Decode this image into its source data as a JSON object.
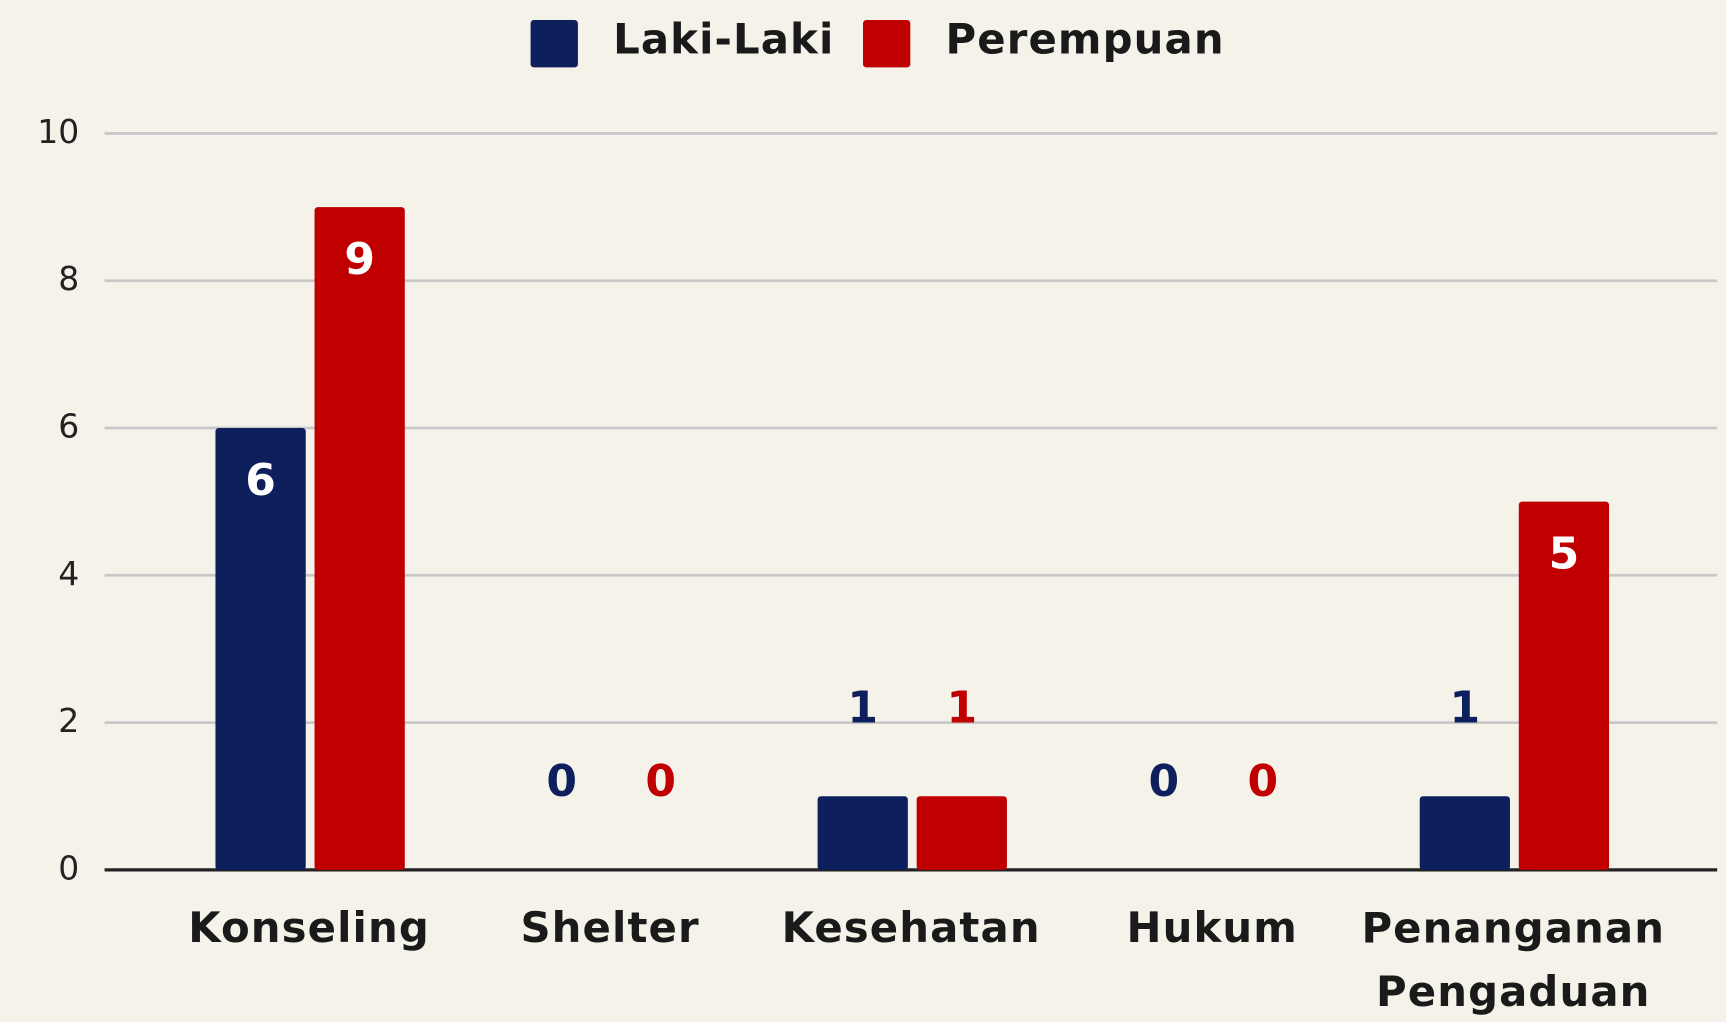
{
  "chart_data": {
    "type": "bar",
    "categories": [
      "Konseling",
      "Shelter",
      "Kesehatan",
      "Hukum",
      "Penanganan Pengaduan"
    ],
    "series": [
      {
        "name": "Laki-Laki",
        "color": "#0d1f5c",
        "values": [
          6,
          0,
          1,
          0,
          1
        ]
      },
      {
        "name": "Perempuan",
        "color": "#c00000",
        "values": [
          9,
          0,
          1,
          0,
          5
        ]
      }
    ],
    "ylim": [
      0,
      10
    ],
    "yticks": [
      0,
      2,
      4,
      6,
      8,
      10
    ],
    "grid": true,
    "legend": "top"
  }
}
